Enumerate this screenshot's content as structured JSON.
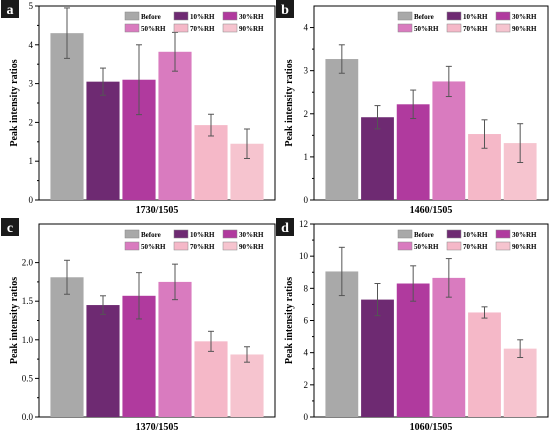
{
  "legend": {
    "entries": [
      {
        "label": "Before",
        "color": "#a9a9a9"
      },
      {
        "label": "10%RH",
        "color": "#6e2a72"
      },
      {
        "label": "30%RH",
        "color": "#b03a9e"
      },
      {
        "label": "50%RH",
        "color": "#d97bbf"
      },
      {
        "label": "70%RH",
        "color": "#f5b8c8"
      },
      {
        "label": "90%RH",
        "color": "#f6c4cf"
      }
    ]
  },
  "chart_data": [
    {
      "panel_label": "a",
      "type": "bar",
      "ylabel": "Peak intensity ratios",
      "xlabel": "1730/1505",
      "ylim": [
        0,
        5
      ],
      "yticks": [
        0,
        1,
        2,
        3,
        4,
        5
      ],
      "grid": false,
      "legend_position": "top-right",
      "series": [
        {
          "name": "Before",
          "value": 4.3,
          "error": 0.65
        },
        {
          "name": "10%RH",
          "value": 3.05,
          "error": 0.35
        },
        {
          "name": "30%RH",
          "value": 3.1,
          "error": 0.9
        },
        {
          "name": "50%RH",
          "value": 3.82,
          "error": 0.5
        },
        {
          "name": "70%RH",
          "value": 1.93,
          "error": 0.28
        },
        {
          "name": "90%RH",
          "value": 1.45,
          "error": 0.38
        }
      ]
    },
    {
      "panel_label": "b",
      "type": "bar",
      "ylabel": "Peak intensity ratios",
      "xlabel": "1460/1505",
      "ylim": [
        0,
        4.5
      ],
      "yticks": [
        0,
        1,
        2,
        3,
        4
      ],
      "grid": false,
      "legend_position": "top-right",
      "series": [
        {
          "name": "Before",
          "value": 3.27,
          "error": 0.33
        },
        {
          "name": "10%RH",
          "value": 1.92,
          "error": 0.27
        },
        {
          "name": "30%RH",
          "value": 2.22,
          "error": 0.33
        },
        {
          "name": "50%RH",
          "value": 2.75,
          "error": 0.35
        },
        {
          "name": "70%RH",
          "value": 1.53,
          "error": 0.33
        },
        {
          "name": "90%RH",
          "value": 1.32,
          "error": 0.45
        }
      ]
    },
    {
      "panel_label": "c",
      "type": "bar",
      "ylabel": "Peak intensity ratios",
      "xlabel": "1370/1505",
      "ylim": [
        0,
        2.5
      ],
      "yticks": [
        0.0,
        0.5,
        1.0,
        1.5,
        2.0
      ],
      "grid": false,
      "legend_position": "top-right",
      "series": [
        {
          "name": "Before",
          "value": 1.81,
          "error": 0.22
        },
        {
          "name": "10%RH",
          "value": 1.45,
          "error": 0.12
        },
        {
          "name": "30%RH",
          "value": 1.57,
          "error": 0.3
        },
        {
          "name": "50%RH",
          "value": 1.75,
          "error": 0.23
        },
        {
          "name": "70%RH",
          "value": 0.98,
          "error": 0.13
        },
        {
          "name": "90%RH",
          "value": 0.81,
          "error": 0.1
        }
      ]
    },
    {
      "panel_label": "d",
      "type": "bar",
      "ylabel": "Peak intensity ratios",
      "xlabel": "1060/1505",
      "ylim": [
        0,
        12
      ],
      "yticks": [
        0,
        2,
        4,
        6,
        8,
        10,
        12
      ],
      "grid": false,
      "legend_position": "top-right",
      "series": [
        {
          "name": "Before",
          "value": 9.05,
          "error": 1.5
        },
        {
          "name": "10%RH",
          "value": 7.3,
          "error": 1.0
        },
        {
          "name": "30%RH",
          "value": 8.3,
          "error": 1.1
        },
        {
          "name": "50%RH",
          "value": 8.65,
          "error": 1.2
        },
        {
          "name": "70%RH",
          "value": 6.5,
          "error": 0.35
        },
        {
          "name": "90%RH",
          "value": 4.25,
          "error": 0.55
        }
      ]
    }
  ]
}
